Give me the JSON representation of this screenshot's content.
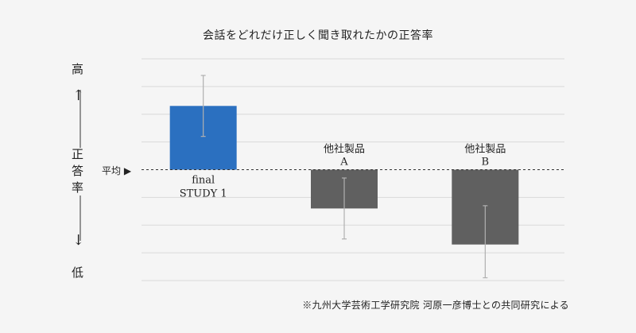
{
  "chart_data": {
    "type": "bar",
    "title": "会話をどれだけ正しく聞き取れたかの正答率",
    "baseline_label": "平均",
    "categories": [
      [
        "final",
        "STUDY 1"
      ],
      [
        "他社製品",
        "A"
      ],
      [
        "他社製品",
        "B"
      ]
    ],
    "values": [
      2.3,
      -1.4,
      -2.7
    ],
    "error_low": [
      1.2,
      -2.5,
      -3.9
    ],
    "error_high": [
      3.4,
      -0.3,
      -1.3
    ],
    "colors": [
      "#2b70c0",
      "#606060",
      "#606060"
    ],
    "ylim": [
      -4,
      4
    ],
    "grid": true,
    "y_top_label": "高",
    "y_mid_label": "正答率",
    "y_bottom_label": "低",
    "up_arrow": "↑",
    "down_arrow": "↓",
    "note": "※九州大学芸術工学研究院 河原一彦博士との共同研究による"
  }
}
